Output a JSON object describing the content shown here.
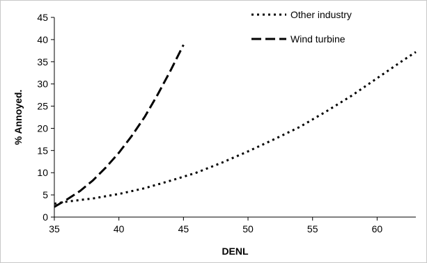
{
  "chart_data": {
    "type": "line",
    "title": "",
    "xlabel": "DENL",
    "ylabel": "% Annoyed.",
    "xlim": [
      35,
      63
    ],
    "ylim": [
      0,
      45
    ],
    "xticks": [
      35,
      40,
      45,
      50,
      55,
      60
    ],
    "yticks": [
      0,
      5,
      10,
      15,
      20,
      25,
      30,
      35,
      40,
      45
    ],
    "grid": false,
    "legend_position": "top-right",
    "series": [
      {
        "name": "Other industry",
        "style": "dotted",
        "color": "#000000",
        "x": [
          35,
          36,
          38,
          40,
          42,
          44,
          46,
          48,
          50,
          52,
          54,
          56,
          58,
          60,
          62,
          63
        ],
        "y": [
          3.0,
          3.5,
          4.2,
          5.2,
          6.5,
          8.2,
          10.0,
          12.3,
          14.8,
          17.5,
          20.3,
          23.7,
          27.3,
          31.3,
          35.3,
          37.2
        ]
      },
      {
        "name": "Wind turbine",
        "style": "dashed",
        "color": "#000000",
        "x": [
          35,
          36,
          37,
          38,
          39,
          40,
          41,
          42,
          43,
          44,
          45
        ],
        "y": [
          2.3,
          4.0,
          5.9,
          8.3,
          11.2,
          14.5,
          18.3,
          22.6,
          27.6,
          33.0,
          38.8
        ]
      }
    ]
  }
}
